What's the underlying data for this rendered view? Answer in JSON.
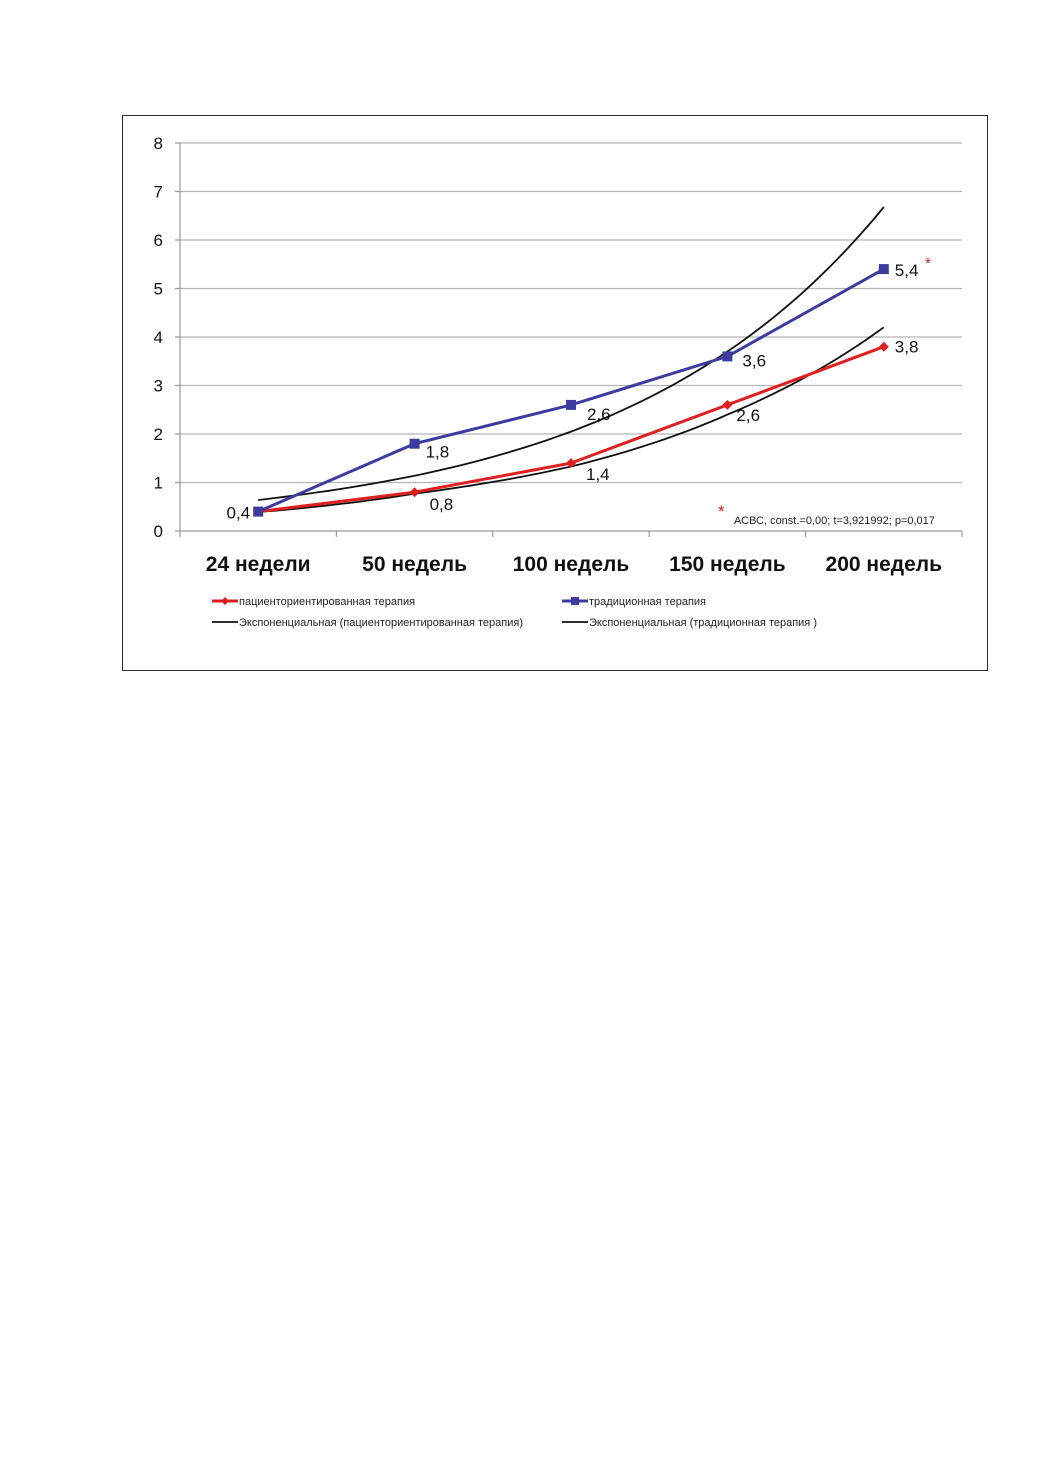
{
  "chart_data": {
    "type": "line",
    "categories": [
      "24 недели",
      "50 недель",
      "100 недель",
      "150 недель",
      "200 недель"
    ],
    "ylim": [
      0,
      8
    ],
    "yticks": [
      "0",
      "1",
      "2",
      "3",
      "4",
      "5",
      "6",
      "7",
      "8"
    ],
    "grid": true,
    "legend_position": "bottom",
    "series": [
      {
        "name": "пациенториентированная терапия",
        "values": [
          0.4,
          0.8,
          1.4,
          2.6,
          3.8
        ],
        "labels": [
          "0,4",
          "0,8",
          "1,4",
          "2,6",
          "3,8"
        ],
        "color": "#e02020",
        "marker": "diamond"
      },
      {
        "name": "традиционная терапия",
        "values": [
          0.4,
          1.8,
          2.6,
          3.6,
          5.4
        ],
        "labels": [
          "",
          "1,8",
          "2,6",
          "3,6",
          "5,4"
        ],
        "color": "#3c3ca0",
        "marker": "square"
      }
    ],
    "trendlines": [
      {
        "name": "Экспоненциальная (пациенториентированная терапия)",
        "values": [
          0.39,
          0.77,
          1.33,
          2.4,
          4.2
        ],
        "color": "#111111"
      },
      {
        "name": "Экспоненциальная (традиционная терапия )",
        "values": [
          0.64,
          1.14,
          2.05,
          3.7,
          6.68
        ],
        "color": "#111111"
      }
    ],
    "annotation": {
      "marker": "*",
      "text": "АСВС, const.=0,00; t=3,921992; p=0,017",
      "color": "#d02020"
    }
  }
}
